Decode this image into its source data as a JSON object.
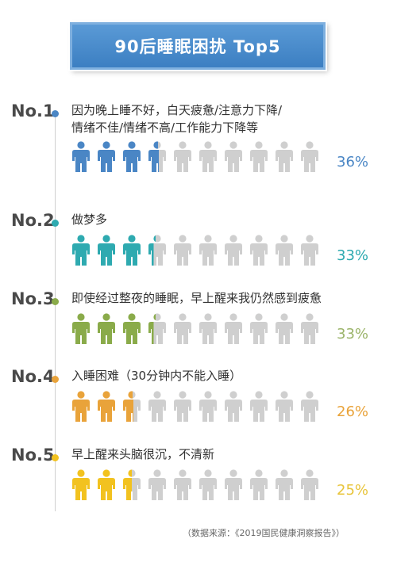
{
  "title": "90后睡眠困扰 Top5",
  "source": "（数据来源：《2019国民健康洞察报告》）",
  "colors": {
    "banner": "#4a8ccc",
    "inactive_icon": "#cfcfcf"
  },
  "icon_name": "person-icon",
  "icons_per_row": 10,
  "chart_data": {
    "type": "bar",
    "title": "90后睡眠困扰 Top5",
    "categories": [
      "No.1",
      "No.2",
      "No.3",
      "No.4",
      "No.5"
    ],
    "labels": [
      "因为晚上睡不好，白天疲惫/注意力下降/情绪不佳/情绪不高/工作能力下降等",
      "做梦多",
      "即使经过整夜的睡眠，早上醒来我仍然感到疲惫",
      "入睡困难（30分钟内不能入睡）",
      "早上醒来头脑很沉，不清新"
    ],
    "values": [
      36,
      33,
      33,
      26,
      25
    ],
    "value_labels": [
      "36%",
      "33%",
      "33%",
      "26%",
      "25%"
    ],
    "unit": "%",
    "ylim": [
      0,
      100
    ],
    "series_colors": [
      "#4a86c5",
      "#2eaab0",
      "#8aab4a",
      "#e9a33a",
      "#f2c21f"
    ]
  },
  "items": [
    {
      "rank": "No.1",
      "line1": "因为晚上睡不好，白天疲惫/注意力下降/",
      "line2": "情绪不佳/情绪不高/工作能力下降等",
      "pct": "36%",
      "value": 36,
      "color": "#4a86c5",
      "pct_color": "#4a86c5"
    },
    {
      "rank": "No.2",
      "line1": "做梦多",
      "line2": "",
      "pct": "33%",
      "value": 33,
      "color": "#2eaab0",
      "pct_color": "#2eaab0"
    },
    {
      "rank": "No.3",
      "line1": "即使经过整夜的睡眠，早上醒来我仍然感到疲惫",
      "line2": "",
      "pct": "33%",
      "value": 33,
      "color": "#8aab4a",
      "pct_color": "#9bb46a"
    },
    {
      "rank": "No.4",
      "line1": "入睡困难（30分钟内不能入睡）",
      "line2": "",
      "pct": "26%",
      "value": 26,
      "color": "#e9a33a",
      "pct_color": "#e9a33a"
    },
    {
      "rank": "No.5",
      "line1": "早上醒来头脑很沉，不清新",
      "line2": "",
      "pct": "25%",
      "value": 25,
      "color": "#f2c21f",
      "pct_color": "#e8c43a"
    }
  ]
}
